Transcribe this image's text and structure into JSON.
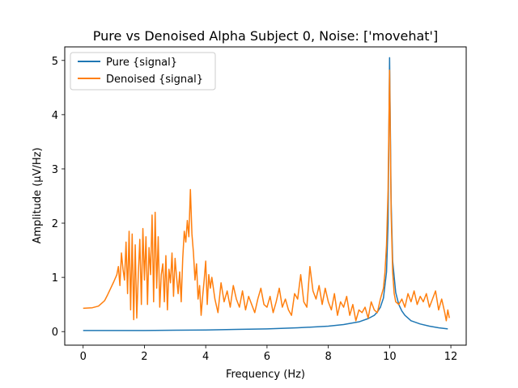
{
  "chart_data": {
    "type": "line",
    "title": "Pure vs Denoised Alpha Subject 0, Noise: ['movehat']",
    "xlabel": "Frequency (Hz)",
    "ylabel": "Amplitude (μV/Hz)",
    "xlim": [
      -0.6,
      12.5
    ],
    "ylim": [
      -0.25,
      5.25
    ],
    "xticks": [
      0,
      2,
      4,
      6,
      8,
      10,
      12
    ],
    "xtick_labels": [
      "0",
      "2",
      "4",
      "6",
      "8",
      "10",
      "12"
    ],
    "yticks": [
      0,
      1,
      2,
      3,
      4,
      5
    ],
    "ytick_labels": [
      "0",
      "1",
      "2",
      "3",
      "4",
      "5"
    ],
    "grid": false,
    "legend_position": "top-left",
    "series": [
      {
        "name": "Pure {signal}",
        "color": "#1f77b4",
        "x": [
          0,
          1,
          2,
          3,
          4,
          5,
          6,
          7,
          8,
          8.5,
          9,
          9.3,
          9.5,
          9.6,
          9.7,
          9.8,
          9.9,
          9.95,
          10.0,
          10.05,
          10.1,
          10.2,
          10.3,
          10.4,
          10.5,
          10.7,
          11.0,
          11.3,
          11.6,
          11.9
        ],
        "y": [
          0.02,
          0.02,
          0.02,
          0.025,
          0.03,
          0.04,
          0.05,
          0.07,
          0.1,
          0.13,
          0.18,
          0.24,
          0.3,
          0.36,
          0.45,
          0.62,
          1.1,
          2.0,
          5.05,
          2.4,
          1.3,
          0.72,
          0.5,
          0.38,
          0.3,
          0.2,
          0.14,
          0.1,
          0.07,
          0.05
        ]
      },
      {
        "name": "Denoised {signal}",
        "color": "#ff7f0e",
        "x": [
          0,
          0.3,
          0.5,
          0.7,
          0.8,
          0.9,
          1.0,
          1.1,
          1.15,
          1.2,
          1.25,
          1.3,
          1.35,
          1.4,
          1.45,
          1.5,
          1.55,
          1.6,
          1.65,
          1.7,
          1.75,
          1.8,
          1.85,
          1.9,
          1.95,
          2.0,
          2.05,
          2.1,
          2.15,
          2.2,
          2.25,
          2.3,
          2.35,
          2.4,
          2.45,
          2.5,
          2.55,
          2.6,
          2.65,
          2.7,
          2.75,
          2.8,
          2.85,
          2.9,
          2.95,
          3.0,
          3.05,
          3.1,
          3.15,
          3.2,
          3.25,
          3.3,
          3.35,
          3.4,
          3.45,
          3.5,
          3.55,
          3.6,
          3.65,
          3.7,
          3.75,
          3.8,
          3.85,
          3.9,
          3.95,
          4.0,
          4.05,
          4.1,
          4.15,
          4.2,
          4.3,
          4.4,
          4.5,
          4.6,
          4.7,
          4.8,
          4.9,
          5.0,
          5.1,
          5.2,
          5.3,
          5.4,
          5.5,
          5.6,
          5.7,
          5.8,
          5.9,
          6.0,
          6.1,
          6.2,
          6.3,
          6.4,
          6.5,
          6.6,
          6.7,
          6.8,
          6.9,
          7.0,
          7.1,
          7.2,
          7.3,
          7.4,
          7.5,
          7.6,
          7.7,
          7.8,
          7.9,
          8.0,
          8.1,
          8.2,
          8.3,
          8.4,
          8.5,
          8.6,
          8.7,
          8.8,
          8.9,
          9.0,
          9.1,
          9.2,
          9.3,
          9.4,
          9.5,
          9.6,
          9.7,
          9.8,
          9.85,
          9.9,
          9.95,
          10.0,
          10.05,
          10.1,
          10.15,
          10.2,
          10.3,
          10.4,
          10.5,
          10.6,
          10.7,
          10.8,
          10.9,
          11.0,
          11.1,
          11.2,
          11.3,
          11.4,
          11.5,
          11.6,
          11.7,
          11.8,
          11.85,
          11.9,
          11.95
        ],
        "y": [
          0.43,
          0.44,
          0.47,
          0.57,
          0.68,
          0.8,
          0.92,
          1.05,
          1.2,
          0.85,
          1.45,
          1.15,
          0.95,
          1.65,
          0.7,
          1.85,
          0.4,
          1.8,
          0.22,
          1.6,
          0.25,
          1.05,
          1.7,
          0.5,
          1.9,
          0.95,
          1.75,
          0.5,
          1.55,
          1.05,
          2.15,
          0.55,
          2.2,
          0.8,
          1.75,
          0.45,
          1.05,
          1.25,
          0.55,
          1.4,
          0.4,
          1.15,
          0.9,
          1.45,
          0.65,
          1.35,
          1.0,
          0.7,
          1.1,
          0.55,
          1.35,
          1.85,
          1.65,
          2.05,
          1.75,
          2.62,
          1.8,
          1.45,
          0.95,
          1.25,
          0.6,
          0.85,
          0.3,
          0.65,
          0.95,
          1.3,
          0.5,
          1.05,
          0.8,
          1.0,
          0.6,
          0.35,
          0.9,
          0.55,
          0.75,
          0.45,
          0.85,
          0.6,
          0.45,
          0.75,
          0.4,
          0.65,
          0.5,
          0.35,
          0.6,
          0.8,
          0.5,
          0.45,
          0.65,
          0.35,
          0.55,
          0.8,
          0.45,
          0.6,
          0.4,
          0.3,
          0.7,
          0.6,
          1.05,
          0.55,
          0.45,
          1.2,
          0.75,
          0.6,
          0.85,
          0.5,
          0.8,
          0.55,
          0.4,
          0.7,
          0.3,
          0.55,
          0.45,
          0.65,
          0.3,
          0.5,
          0.2,
          0.4,
          0.35,
          0.45,
          0.25,
          0.55,
          0.4,
          0.35,
          0.6,
          0.8,
          1.1,
          1.6,
          2.6,
          4.82,
          2.2,
          1.1,
          0.7,
          0.55,
          0.5,
          0.6,
          0.45,
          0.7,
          0.55,
          0.75,
          0.5,
          0.65,
          0.55,
          0.7,
          0.45,
          0.6,
          0.75,
          0.4,
          0.6,
          0.35,
          0.2,
          0.4,
          0.25
        ]
      }
    ]
  }
}
